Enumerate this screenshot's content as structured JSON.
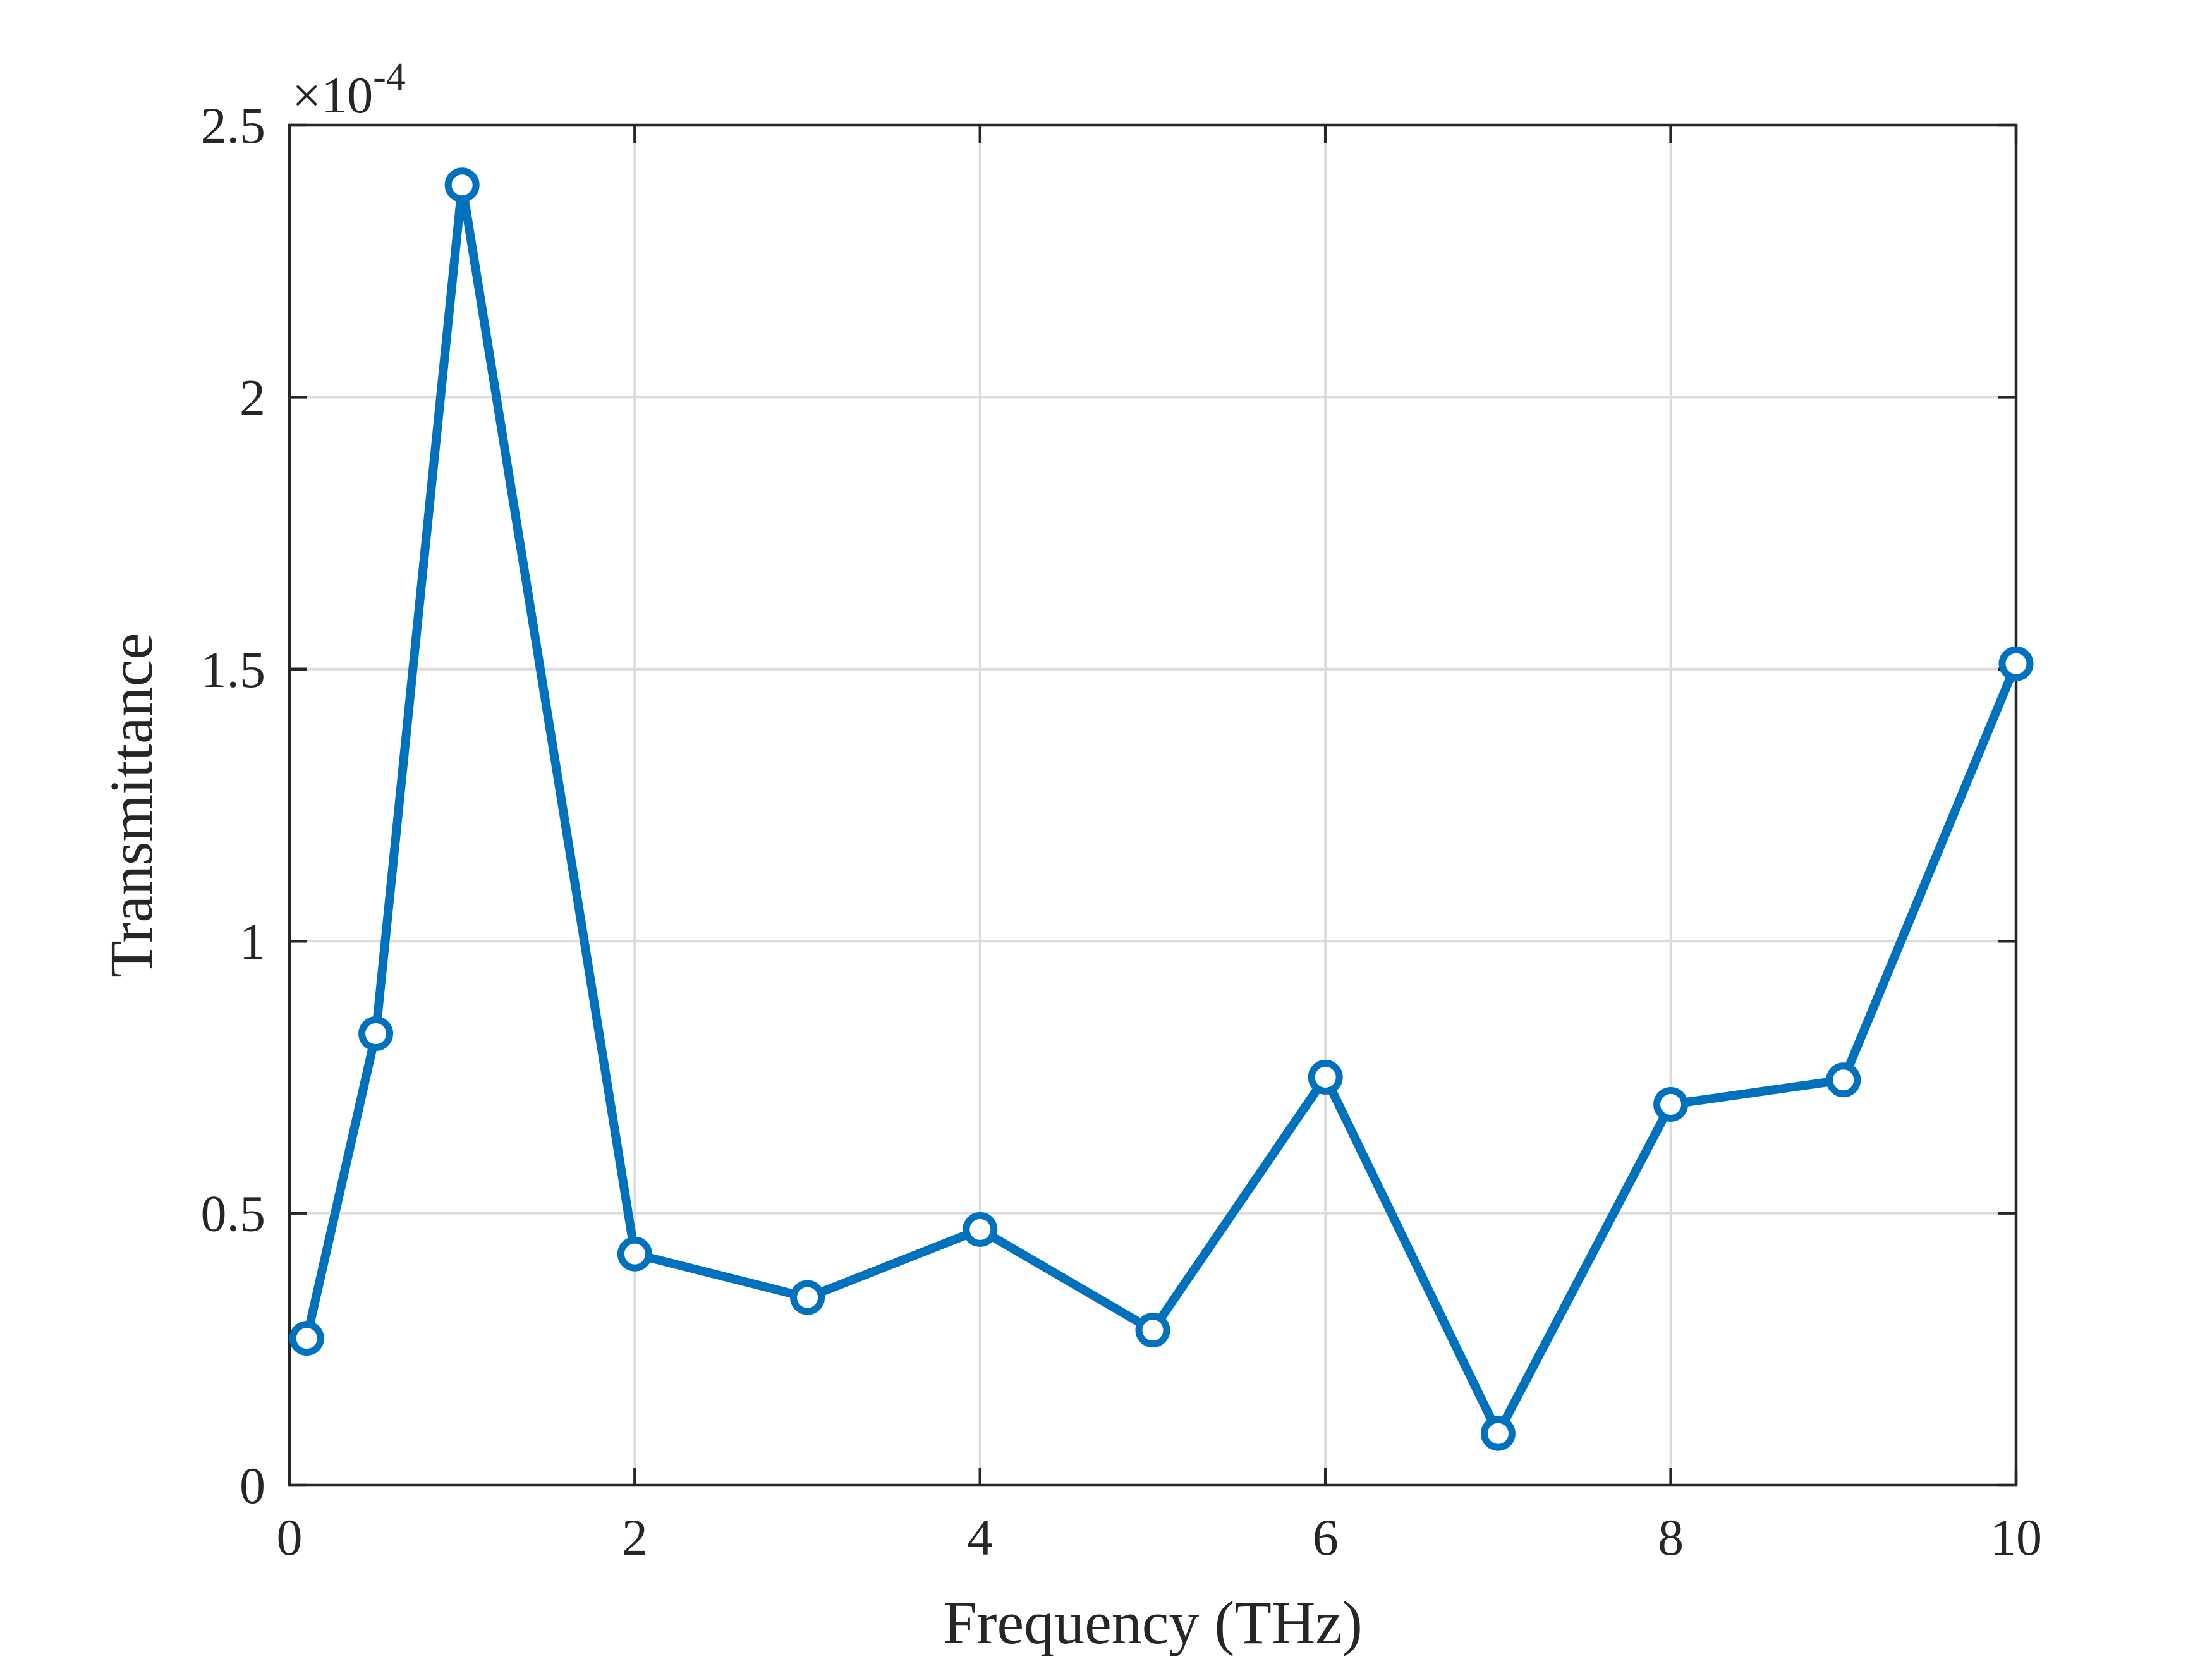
{
  "chart_data": {
    "type": "line",
    "title": "",
    "xlabel": "Frequency (THz)",
    "ylabel": "Transmittance",
    "xlim": [
      0,
      10
    ],
    "ylim": [
      0,
      2.5
    ],
    "y_exponent_label": "×10",
    "y_exponent_power": "-4",
    "xticks": [
      0,
      2,
      4,
      6,
      8,
      10
    ],
    "xtick_labels": [
      "0",
      "2",
      "4",
      "6",
      "8",
      "10"
    ],
    "yticks": [
      0,
      0.5,
      1,
      1.5,
      2,
      2.5
    ],
    "ytick_labels": [
      "0",
      "0.5",
      "1",
      "1.5",
      "2",
      "2.5"
    ],
    "grid": true,
    "legend": "none",
    "series": [
      {
        "color": "#0072BD",
        "marker": "circle",
        "x": [
          0.1,
          0.5,
          1,
          2,
          3,
          4,
          5,
          6,
          7,
          8,
          9,
          10
        ],
        "y": [
          0.27,
          0.83,
          2.39,
          0.425,
          0.345,
          0.47,
          0.285,
          0.75,
          0.095,
          0.7,
          0.745,
          1.51
        ]
      }
    ]
  }
}
